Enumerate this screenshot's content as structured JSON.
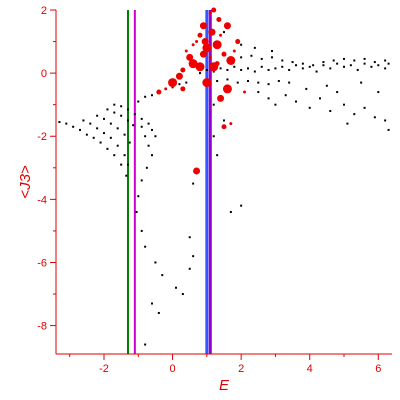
{
  "colors": {
    "axis": "#e00000",
    "scatter": "#000000",
    "highlight": "#ee0000",
    "line_green": "#008000",
    "line_magenta": "#d000d0",
    "line_blue": "#3355ff",
    "line_purple": "#9900cc"
  },
  "chart_data": {
    "type": "scatter",
    "title": "",
    "xlabel": "E",
    "ylabel": "<J3>",
    "xlim": [
      -3.4,
      6.4
    ],
    "ylim": [
      -8.9,
      2.0
    ],
    "x_ticks": [
      -2,
      0,
      2,
      4,
      6
    ],
    "y_ticks": [
      -8,
      -6,
      -4,
      -2,
      0,
      2
    ],
    "grid": false,
    "vertical_lines": [
      {
        "x": -1.3,
        "color": "green"
      },
      {
        "x": -1.1,
        "color": "magenta"
      },
      {
        "x": 1.0,
        "color": "blue"
      },
      {
        "x": 1.1,
        "color": "purple"
      }
    ],
    "series": [
      {
        "values": [
          [
            -3.3,
            -1.55
          ],
          [
            -3.1,
            -1.6
          ],
          [
            -2.9,
            -1.7
          ],
          [
            -2.7,
            -1.8
          ],
          [
            -2.5,
            -1.95
          ],
          [
            -2.3,
            -2.05
          ],
          [
            -2.1,
            -2.2
          ],
          [
            -1.9,
            -2.4
          ],
          [
            -1.7,
            -2.6
          ],
          [
            -1.5,
            -2.9
          ],
          [
            -1.35,
            -3.25
          ],
          [
            -2.6,
            -1.5
          ],
          [
            -2.4,
            -1.6
          ],
          [
            -2.2,
            -1.75
          ],
          [
            -2.0,
            -1.9
          ],
          [
            -1.8,
            -2.05
          ],
          [
            -1.6,
            -2.3
          ],
          [
            -1.4,
            -2.6
          ],
          [
            -1.3,
            -2.9
          ],
          [
            -2.2,
            -1.35
          ],
          [
            -2.0,
            -1.45
          ],
          [
            -1.8,
            -1.6
          ],
          [
            -1.6,
            -1.75
          ],
          [
            -1.4,
            -1.95
          ],
          [
            -1.25,
            -2.2
          ],
          [
            -1.9,
            -1.15
          ],
          [
            -1.7,
            -1.25
          ],
          [
            -1.5,
            -1.35
          ],
          [
            -1.3,
            -1.5
          ],
          [
            -1.15,
            -1.65
          ],
          [
            -1.7,
            -1.0
          ],
          [
            -1.5,
            -1.05
          ],
          [
            -1.3,
            -1.15
          ],
          [
            -1.1,
            -1.3
          ],
          [
            -0.9,
            -1.45
          ],
          [
            -0.7,
            -1.6
          ],
          [
            -0.6,
            -1.8
          ],
          [
            -0.5,
            -2.0
          ],
          [
            -1.0,
            -0.9
          ],
          [
            -0.8,
            -0.75
          ],
          [
            -0.6,
            -0.7
          ],
          [
            -0.4,
            -0.6
          ],
          [
            -0.2,
            -0.5
          ],
          [
            0.0,
            -0.45
          ],
          [
            0.2,
            -0.35
          ],
          [
            0.4,
            -0.3
          ],
          [
            -0.9,
            -1.7
          ],
          [
            -0.8,
            -2.0
          ],
          [
            -0.7,
            -2.3
          ],
          [
            -0.6,
            -2.6
          ],
          [
            -0.75,
            -3.0
          ],
          [
            -0.9,
            -3.4
          ],
          [
            -1.0,
            -3.9
          ],
          [
            -1.05,
            -4.4
          ],
          [
            -0.9,
            -5.0
          ],
          [
            -0.8,
            -5.5
          ],
          [
            -0.5,
            -6.0
          ],
          [
            -0.3,
            -6.4
          ],
          [
            0.1,
            -6.8
          ],
          [
            -0.6,
            -7.3
          ],
          [
            -0.4,
            -7.6
          ],
          [
            -0.8,
            -8.6
          ],
          [
            0.5,
            -6.2
          ],
          [
            0.3,
            -7.0
          ],
          [
            0.6,
            -3.5
          ],
          [
            0.5,
            -5.2
          ],
          [
            0.6,
            -5.8
          ],
          [
            1.7,
            -4.4
          ],
          [
            2.0,
            -4.2
          ],
          [
            0.8,
            0.0
          ],
          [
            1.0,
            0.1
          ],
          [
            1.2,
            0.05
          ],
          [
            1.4,
            0.15
          ],
          [
            1.6,
            0.1
          ],
          [
            1.8,
            0.2
          ],
          [
            2.0,
            0.1
          ],
          [
            2.2,
            0.15
          ],
          [
            2.4,
            0.05
          ],
          [
            2.6,
            0.2
          ],
          [
            2.8,
            0.1
          ],
          [
            3.0,
            0.15
          ],
          [
            3.2,
            0.2
          ],
          [
            3.4,
            0.1
          ],
          [
            3.6,
            0.25
          ],
          [
            3.8,
            0.15
          ],
          [
            4.0,
            0.2
          ],
          [
            4.2,
            0.05
          ],
          [
            4.4,
            0.25
          ],
          [
            4.6,
            0.15
          ],
          [
            4.8,
            0.3
          ],
          [
            5.0,
            0.2
          ],
          [
            5.2,
            0.25
          ],
          [
            5.4,
            0.1
          ],
          [
            5.6,
            0.3
          ],
          [
            5.8,
            0.2
          ],
          [
            6.0,
            0.25
          ],
          [
            6.2,
            0.15
          ],
          [
            6.3,
            0.3
          ],
          [
            1.0,
            -0.2
          ],
          [
            1.3,
            -0.25
          ],
          [
            1.6,
            -0.2
          ],
          [
            1.9,
            -0.3
          ],
          [
            2.2,
            -0.25
          ],
          [
            2.5,
            -0.3
          ],
          [
            2.8,
            -0.35
          ],
          [
            3.1,
            -0.25
          ],
          [
            3.4,
            -0.3
          ],
          [
            2.0,
            0.5
          ],
          [
            2.3,
            0.55
          ],
          [
            2.6,
            0.45
          ],
          [
            2.9,
            0.5
          ],
          [
            3.2,
            0.4
          ],
          [
            3.5,
            0.35
          ],
          [
            3.8,
            0.3
          ],
          [
            4.1,
            0.25
          ],
          [
            4.4,
            0.35
          ],
          [
            4.7,
            0.4
          ],
          [
            5.0,
            0.45
          ],
          [
            5.3,
            0.4
          ],
          [
            5.6,
            0.45
          ],
          [
            5.9,
            0.35
          ],
          [
            6.2,
            0.4
          ],
          [
            2.5,
            -0.6
          ],
          [
            2.8,
            -0.8
          ],
          [
            3.0,
            -1.0
          ],
          [
            3.3,
            -0.7
          ],
          [
            3.6,
            -0.9
          ],
          [
            4.0,
            -1.1
          ],
          [
            4.3,
            -0.8
          ],
          [
            4.6,
            -1.2
          ],
          [
            5.0,
            -1.0
          ],
          [
            5.3,
            -1.3
          ],
          [
            5.6,
            -1.1
          ],
          [
            5.9,
            -1.4
          ],
          [
            6.2,
            -1.5
          ],
          [
            6.3,
            -1.8
          ],
          [
            5.1,
            -1.6
          ],
          [
            4.8,
            -0.6
          ],
          [
            3.9,
            -0.5
          ],
          [
            4.5,
            -0.4
          ],
          [
            5.5,
            -0.3
          ],
          [
            6.0,
            -0.6
          ],
          [
            2.0,
            0.9
          ],
          [
            2.4,
            0.8
          ],
          [
            1.5,
            1.3
          ],
          [
            2.9,
            0.7
          ],
          [
            1.2,
            -1.0
          ],
          [
            1.5,
            -1.5
          ],
          [
            1.2,
            -2.0
          ],
          [
            1.3,
            -2.6
          ]
        ]
      },
      {
        "values": [
          [
            0.7,
            1.0
          ],
          [
            0.8,
            1.2
          ],
          [
            0.9,
            1.5
          ],
          [
            1.0,
            0.8
          ],
          [
            1.1,
            1.9
          ],
          [
            1.2,
            2.0
          ],
          [
            1.15,
            1.3
          ],
          [
            1.3,
            0.9
          ],
          [
            1.4,
            1.2
          ],
          [
            1.5,
            0.6
          ],
          [
            1.6,
            1.5
          ],
          [
            1.7,
            0.4
          ],
          [
            1.8,
            0.7
          ],
          [
            1.9,
            1.0
          ],
          [
            0.5,
            0.5
          ],
          [
            0.6,
            0.3
          ],
          [
            0.4,
            0.7
          ],
          [
            0.3,
            0.1
          ],
          [
            0.2,
            -0.1
          ],
          [
            0.0,
            -0.3
          ],
          [
            -0.2,
            -0.5
          ],
          [
            -0.4,
            -0.6
          ],
          [
            0.9,
            0.6
          ],
          [
            0.8,
            0.2
          ],
          [
            1.1,
            0.5
          ],
          [
            1.3,
            0.3
          ],
          [
            1.4,
            -0.8
          ],
          [
            1.6,
            -0.5
          ],
          [
            1.7,
            -1.6
          ],
          [
            1.5,
            -1.7
          ],
          [
            0.7,
            -3.1
          ],
          [
            1.0,
            -0.3
          ],
          [
            0.6,
            0.9
          ],
          [
            1.35,
            1.7
          ],
          [
            0.95,
            1.0
          ],
          [
            1.2,
            0.2
          ],
          [
            2.1,
            -0.6
          ],
          [
            0.3,
            -0.5
          ]
        ]
      }
    ]
  }
}
